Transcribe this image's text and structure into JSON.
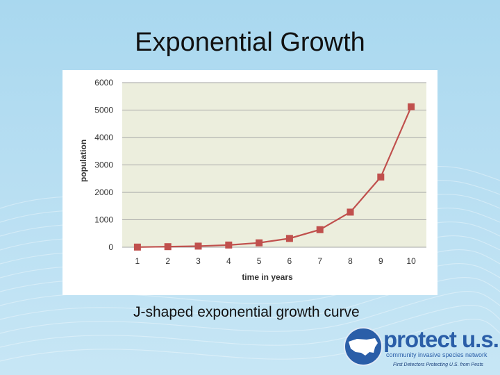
{
  "slide": {
    "title": "Exponential Growth",
    "caption": "J-shaped exponential growth curve"
  },
  "logo": {
    "name": "protect u.s.",
    "tagline": "community invasive species network",
    "subline": "First Detectors Protecting U.S. from Pests"
  },
  "colors": {
    "background": "#b7def2",
    "plot_area": "#eceedd",
    "series": "#c0504d",
    "logo_blue": "#2a5ea8"
  },
  "chart_data": {
    "type": "line",
    "title": "",
    "xlabel": "time in years",
    "ylabel": "population",
    "x": [
      1,
      2,
      3,
      4,
      5,
      6,
      7,
      8,
      9,
      10
    ],
    "series": [
      {
        "values": [
          5,
          20,
          40,
          80,
          160,
          320,
          640,
          1280,
          2560,
          5120
        ]
      }
    ],
    "ylim": [
      0,
      6000
    ],
    "yticks": [
      0,
      1000,
      2000,
      3000,
      4000,
      5000,
      6000
    ],
    "grid": true,
    "marker": "square",
    "legend": "none"
  }
}
